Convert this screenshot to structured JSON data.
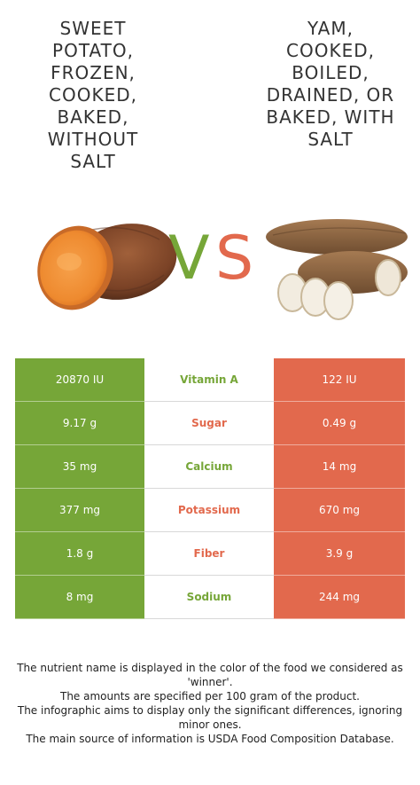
{
  "titles": {
    "left": [
      "SWEET",
      "POTATO,",
      "FROZEN,",
      "COOKED,",
      "BAKED,",
      "WITHOUT",
      "SALT"
    ],
    "right": [
      "YAM,",
      "COOKED,",
      "BOILED,",
      "DRAINED, OR",
      "BAKED, WITH",
      "SALT"
    ]
  },
  "vs": {
    "v": "V",
    "s": "S"
  },
  "colors": {
    "left": "#76a638",
    "right": "#e2694d"
  },
  "rows": [
    {
      "left": "20870 IU",
      "nutrient": "Vitamin A",
      "right": "122 IU",
      "winner": "left"
    },
    {
      "left": "9.17 g",
      "nutrient": "Sugar",
      "right": "0.49 g",
      "winner": "right"
    },
    {
      "left": "35 mg",
      "nutrient": "Calcium",
      "right": "14 mg",
      "winner": "left"
    },
    {
      "left": "377 mg",
      "nutrient": "Potassium",
      "right": "670 mg",
      "winner": "right"
    },
    {
      "left": "1.8 g",
      "nutrient": "Fiber",
      "right": "3.9 g",
      "winner": "right"
    },
    {
      "left": "8 mg",
      "nutrient": "Sodium",
      "right": "244 mg",
      "winner": "left"
    }
  ],
  "footnote": [
    "The nutrient name is displayed in the color of the food we considered as 'winner'.",
    "The amounts are specified per 100 gram of the product.",
    "The infographic aims to display only the significant differences, ignoring minor ones.",
    "The main source of information is USDA Food Composition Database."
  ]
}
